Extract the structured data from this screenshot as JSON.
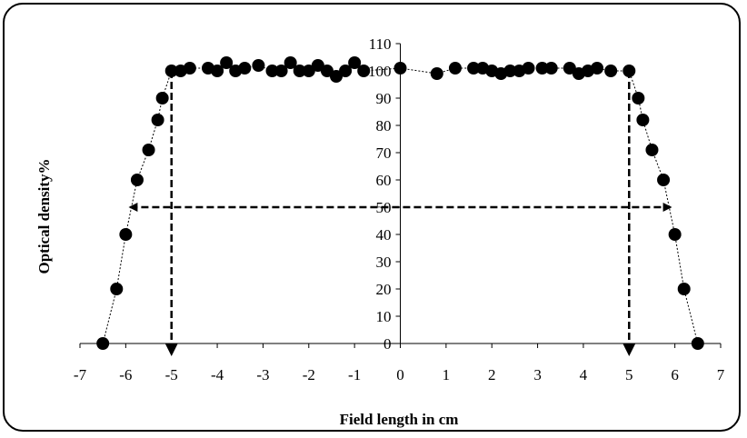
{
  "chart_data": {
    "type": "scatter",
    "title": "",
    "xlabel": "Field length in cm",
    "ylabel": "Optical density%",
    "xlim": [
      -7,
      7
    ],
    "ylim": [
      0,
      110
    ],
    "x_ticks": [
      -7,
      -6,
      -5,
      -4,
      -3,
      -2,
      -1,
      0,
      1,
      2,
      3,
      4,
      5,
      6,
      7
    ],
    "y_ticks": [
      0,
      10,
      20,
      30,
      40,
      50,
      60,
      70,
      80,
      90,
      100,
      110
    ],
    "grid": false,
    "legend": "none",
    "point_color": "#000000",
    "series": [
      {
        "x": [
          -6.5,
          -6.2,
          -6.0,
          -5.75,
          -5.5,
          -5.3,
          -5.2,
          -5.0,
          -4.8,
          -4.6,
          -4.2,
          -4.0,
          -3.8,
          -3.6,
          -3.4,
          -3.1,
          -2.8,
          -2.6,
          -2.4,
          -2.2,
          -2.0,
          -1.8,
          -1.6,
          -1.4,
          -1.2,
          -1.0,
          -0.8,
          0.0,
          0.8,
          1.2,
          1.6,
          1.8,
          2.0,
          2.2,
          2.4,
          2.6,
          2.8,
          3.1,
          3.3,
          3.7,
          3.9,
          4.1,
          4.3,
          4.6,
          5.0,
          5.2,
          5.3,
          5.5,
          5.75,
          6.0,
          6.2,
          6.5
        ],
        "y": [
          0,
          20,
          40,
          60,
          71,
          82,
          90,
          100,
          100,
          101,
          101,
          100,
          103,
          100,
          101,
          102,
          100,
          100,
          103,
          100,
          100,
          102,
          100,
          98,
          100,
          103,
          100,
          101,
          99,
          101,
          101,
          101,
          100,
          99,
          100,
          100,
          101,
          101,
          101,
          101,
          99,
          100,
          101,
          100,
          100,
          90,
          82,
          71,
          60,
          40,
          20,
          0
        ]
      }
    ],
    "annotations": [
      {
        "type": "double-arrow-horizontal",
        "y": 50,
        "x_from": -5.9,
        "x_to": 5.9
      },
      {
        "type": "arrow-down",
        "x": -5.0,
        "y_from": 100,
        "y_to": 0
      },
      {
        "type": "arrow-down",
        "x": 5.0,
        "y_from": 100,
        "y_to": 0
      }
    ]
  }
}
